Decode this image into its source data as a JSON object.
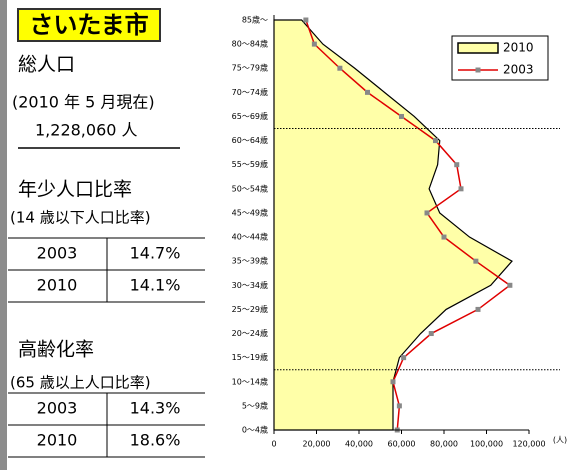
{
  "panel": {
    "title": "さいたま市",
    "population_label": "総人口",
    "as_of": "(2010 年 5 月現在)",
    "population": "1,228,060 人",
    "youth": {
      "label": "年少人口比率",
      "note": "(14 歳以下人口比率)",
      "rows": [
        [
          "2003",
          "14.7%"
        ],
        [
          "2010",
          "14.1%"
        ]
      ]
    },
    "elderly": {
      "label": "高齢化率",
      "note": "(65 歳以上人口比率)",
      "rows": [
        [
          "2003",
          "14.3%"
        ],
        [
          "2010",
          "18.6%"
        ]
      ]
    }
  },
  "chart_data": {
    "type": "area-line",
    "xlabel": "(人)",
    "categories": [
      "85歳～",
      "80～84歳",
      "75～79歳",
      "70～74歳",
      "65～69歳",
      "60～64歳",
      "55～59歳",
      "50～54歳",
      "45～49歳",
      "40～44歳",
      "35～39歳",
      "30～34歳",
      "25～29歳",
      "20～24歳",
      "15～19歳",
      "10～14歳",
      "5～9歳",
      "0～4歳"
    ],
    "series": [
      {
        "name": "2010",
        "color": "#ffffa8",
        "values": [
          13000,
          23000,
          38000,
          52000,
          66000,
          78000,
          77000,
          73000,
          78000,
          92000,
          112000,
          102000,
          81000,
          69000,
          59000,
          56000,
          56000,
          56000
        ]
      },
      {
        "name": "2003",
        "color": "#e00000",
        "values": [
          15000,
          19000,
          31000,
          44000,
          60000,
          76000,
          86000,
          88000,
          72000,
          80000,
          95000,
          111000,
          96000,
          74000,
          61000,
          56000,
          59000,
          58000
        ]
      }
    ],
    "xlim": [
      0,
      120000
    ],
    "xticks": [
      0,
      {
        "value": 20000,
        "label": "20,000"
      },
      {
        "value": 40000,
        "label": "40,000"
      },
      {
        "value": 60000,
        "label": "60,000"
      },
      {
        "value": 80000,
        "label": "80,000"
      },
      {
        "value": 100000,
        "label": "100,000"
      },
      {
        "value": 120000,
        "label": "120,000"
      }
    ]
  }
}
